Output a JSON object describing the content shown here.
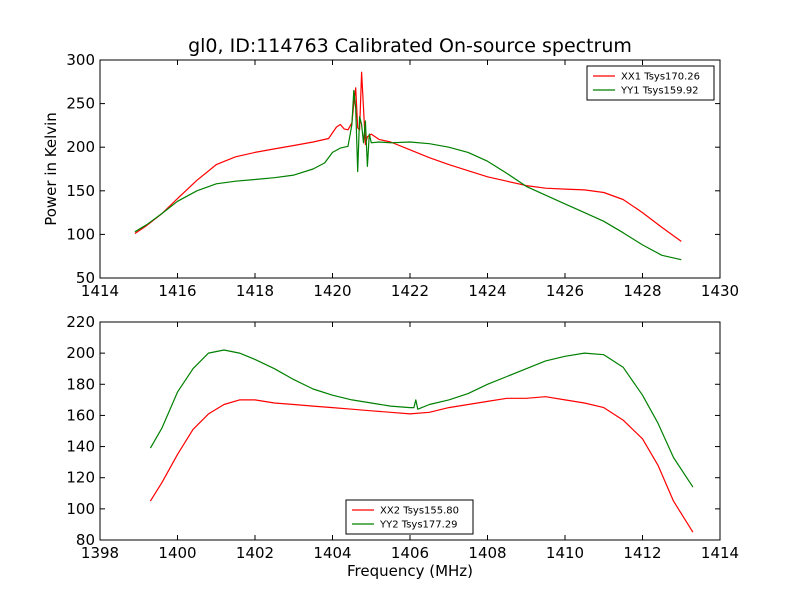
{
  "title": "gl0, ID:114763 Calibrated On-source spectrum",
  "colors": {
    "red": "#ff0000",
    "green": "#008000"
  },
  "chart_data": [
    {
      "type": "line",
      "ylabel": "Power in Kelvin",
      "xlabel": "",
      "xlim": [
        1414,
        1430
      ],
      "ylim": [
        50,
        300
      ],
      "xticks": [
        1414,
        1416,
        1418,
        1420,
        1422,
        1424,
        1426,
        1428,
        1430
      ],
      "yticks": [
        50,
        100,
        150,
        200,
        250,
        300
      ],
      "legend_position": "top-right",
      "series": [
        {
          "name": "XX1 Tsys170.26",
          "color": "#ff0000",
          "points": [
            [
              1414.9,
              101
            ],
            [
              1415.2,
              110
            ],
            [
              1415.6,
              124
            ],
            [
              1416.0,
              141
            ],
            [
              1416.5,
              162
            ],
            [
              1417.0,
              180
            ],
            [
              1417.5,
              189
            ],
            [
              1418.0,
              194
            ],
            [
              1418.5,
              198
            ],
            [
              1419.0,
              202
            ],
            [
              1419.5,
              206
            ],
            [
              1419.9,
              210
            ],
            [
              1420.1,
              223
            ],
            [
              1420.2,
              226
            ],
            [
              1420.3,
              221
            ],
            [
              1420.4,
              220
            ],
            [
              1420.5,
              228
            ],
            [
              1420.55,
              250
            ],
            [
              1420.6,
              268
            ],
            [
              1420.65,
              222
            ],
            [
              1420.7,
              220
            ],
            [
              1420.75,
              286
            ],
            [
              1420.8,
              245
            ],
            [
              1420.85,
              203
            ],
            [
              1420.9,
              212
            ],
            [
              1421.0,
              215
            ],
            [
              1421.2,
              209
            ],
            [
              1421.5,
              206
            ],
            [
              1422.0,
              197
            ],
            [
              1422.5,
              188
            ],
            [
              1423.0,
              180
            ],
            [
              1423.5,
              173
            ],
            [
              1424.0,
              166
            ],
            [
              1424.5,
              161
            ],
            [
              1425.0,
              156
            ],
            [
              1425.5,
              153
            ],
            [
              1426.0,
              152
            ],
            [
              1426.5,
              151
            ],
            [
              1427.0,
              148
            ],
            [
              1427.5,
              140
            ],
            [
              1428.0,
              125
            ],
            [
              1428.5,
              108
            ],
            [
              1429.0,
              92
            ]
          ]
        },
        {
          "name": "YY1 Tsys159.92",
          "color": "#008000",
          "points": [
            [
              1414.9,
              103
            ],
            [
              1415.2,
              111
            ],
            [
              1415.6,
              124
            ],
            [
              1416.0,
              138
            ],
            [
              1416.5,
              150
            ],
            [
              1417.0,
              158
            ],
            [
              1417.5,
              161
            ],
            [
              1418.0,
              163
            ],
            [
              1418.5,
              165
            ],
            [
              1419.0,
              168
            ],
            [
              1419.5,
              175
            ],
            [
              1419.8,
              182
            ],
            [
              1420.0,
              194
            ],
            [
              1420.2,
              199
            ],
            [
              1420.4,
              201
            ],
            [
              1420.5,
              226
            ],
            [
              1420.55,
              265
            ],
            [
              1420.6,
              245
            ],
            [
              1420.65,
              172
            ],
            [
              1420.7,
              235
            ],
            [
              1420.75,
              226
            ],
            [
              1420.8,
              205
            ],
            [
              1420.85,
              230
            ],
            [
              1420.9,
              178
            ],
            [
              1420.95,
              215
            ],
            [
              1421.0,
              205
            ],
            [
              1421.2,
              206
            ],
            [
              1421.5,
              205
            ],
            [
              1422.0,
              206
            ],
            [
              1422.5,
              204
            ],
            [
              1423.0,
              200
            ],
            [
              1423.5,
              194
            ],
            [
              1424.0,
              184
            ],
            [
              1424.5,
              170
            ],
            [
              1425.0,
              155
            ],
            [
              1425.5,
              145
            ],
            [
              1426.0,
              135
            ],
            [
              1426.5,
              125
            ],
            [
              1427.0,
              115
            ],
            [
              1427.5,
              102
            ],
            [
              1428.0,
              88
            ],
            [
              1428.5,
              76
            ],
            [
              1429.0,
              71
            ]
          ]
        }
      ]
    },
    {
      "type": "line",
      "ylabel": "",
      "xlabel": "Frequency (MHz)",
      "xlim": [
        1398,
        1414
      ],
      "ylim": [
        80,
        220
      ],
      "xticks": [
        1398,
        1400,
        1402,
        1404,
        1406,
        1408,
        1410,
        1412,
        1414
      ],
      "yticks": [
        80,
        100,
        120,
        140,
        160,
        180,
        200,
        220
      ],
      "legend_position": "bottom-center",
      "series": [
        {
          "name": "XX2 Tsys155.80",
          "color": "#ff0000",
          "points": [
            [
              1399.3,
              105
            ],
            [
              1399.6,
              117
            ],
            [
              1400.0,
              135
            ],
            [
              1400.4,
              151
            ],
            [
              1400.8,
              161
            ],
            [
              1401.2,
              167
            ],
            [
              1401.6,
              170
            ],
            [
              1402.0,
              170
            ],
            [
              1402.5,
              168
            ],
            [
              1403.0,
              167
            ],
            [
              1403.5,
              166
            ],
            [
              1404.0,
              165
            ],
            [
              1404.5,
              164
            ],
            [
              1405.0,
              163
            ],
            [
              1405.5,
              162
            ],
            [
              1406.0,
              161
            ],
            [
              1406.5,
              162
            ],
            [
              1407.0,
              165
            ],
            [
              1407.5,
              167
            ],
            [
              1408.0,
              169
            ],
            [
              1408.5,
              171
            ],
            [
              1409.0,
              171
            ],
            [
              1409.5,
              172
            ],
            [
              1410.0,
              170
            ],
            [
              1410.5,
              168
            ],
            [
              1411.0,
              165
            ],
            [
              1411.5,
              157
            ],
            [
              1412.0,
              145
            ],
            [
              1412.4,
              128
            ],
            [
              1412.8,
              105
            ],
            [
              1413.3,
              85
            ]
          ]
        },
        {
          "name": "YY2 Tsys177.29",
          "color": "#008000",
          "points": [
            [
              1399.3,
              139
            ],
            [
              1399.6,
              152
            ],
            [
              1400.0,
              175
            ],
            [
              1400.4,
              190
            ],
            [
              1400.8,
              200
            ],
            [
              1401.2,
              202
            ],
            [
              1401.6,
              200
            ],
            [
              1402.0,
              196
            ],
            [
              1402.5,
              190
            ],
            [
              1403.0,
              183
            ],
            [
              1403.5,
              177
            ],
            [
              1404.0,
              173
            ],
            [
              1404.5,
              170
            ],
            [
              1405.0,
              168
            ],
            [
              1405.5,
              166
            ],
            [
              1406.0,
              165
            ],
            [
              1406.1,
              165
            ],
            [
              1406.15,
              170
            ],
            [
              1406.2,
              164
            ],
            [
              1406.5,
              167
            ],
            [
              1407.0,
              170
            ],
            [
              1407.5,
              174
            ],
            [
              1408.0,
              180
            ],
            [
              1408.5,
              185
            ],
            [
              1409.0,
              190
            ],
            [
              1409.5,
              195
            ],
            [
              1410.0,
              198
            ],
            [
              1410.5,
              200
            ],
            [
              1411.0,
              199
            ],
            [
              1411.5,
              191
            ],
            [
              1412.0,
              173
            ],
            [
              1412.4,
              155
            ],
            [
              1412.8,
              133
            ],
            [
              1413.3,
              114
            ]
          ]
        }
      ]
    }
  ]
}
